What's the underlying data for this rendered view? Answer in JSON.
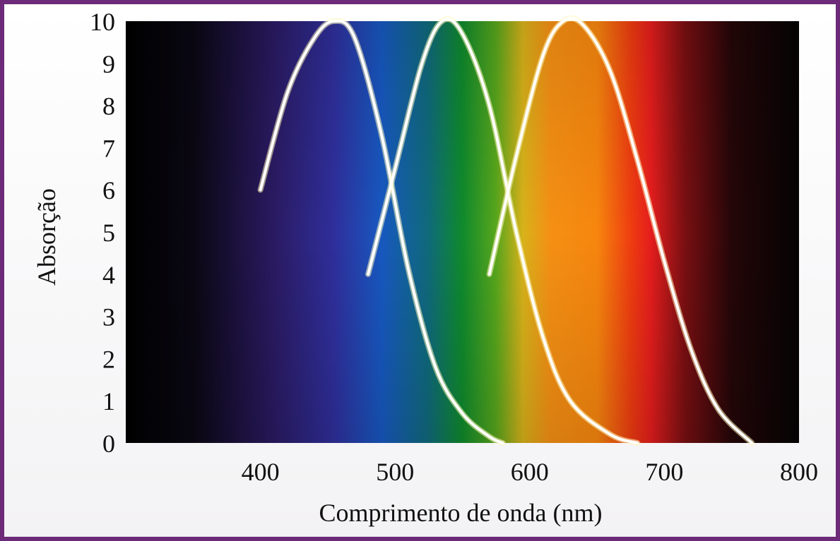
{
  "chart_data": {
    "type": "line",
    "title": "",
    "xlabel": "Comprimento de onda (nm)",
    "ylabel": "Absorção",
    "xlim": [
      300,
      800
    ],
    "ylim": [
      0,
      10
    ],
    "xticks": [
      "400",
      "500",
      "600",
      "700",
      "800"
    ],
    "yticks": [
      "0",
      "1",
      "2",
      "3",
      "4",
      "5",
      "6",
      "7",
      "8",
      "9",
      "10"
    ],
    "background": "visible light spectrum (violet → blue → green → yellow → orange → red → dark)",
    "grid": false,
    "legend": "none",
    "series": [
      {
        "color": "#ffffff",
        "peak_wavelength": 455,
        "x": [
          400,
          420,
          440,
          455,
          470,
          490,
          510,
          530,
          550,
          570,
          580
        ],
        "y": [
          6.0,
          8.3,
          9.6,
          10.0,
          9.6,
          7.3,
          4.1,
          1.8,
          0.7,
          0.15,
          0.0
        ]
      },
      {
        "color": "#ffffff",
        "peak_wavelength": 535,
        "x": [
          480,
          500,
          520,
          535,
          550,
          570,
          590,
          610,
          630,
          660,
          680
        ],
        "y": [
          4.0,
          6.5,
          9.0,
          10.0,
          9.7,
          8.0,
          5.0,
          2.5,
          1.0,
          0.2,
          0.0
        ]
      },
      {
        "color": "#ffffff",
        "peak_wavelength": 625,
        "x": [
          570,
          590,
          610,
          625,
          640,
          660,
          680,
          700,
          720,
          740,
          765
        ],
        "y": [
          4.0,
          6.8,
          9.2,
          10.0,
          9.9,
          8.8,
          6.7,
          4.3,
          2.2,
          0.8,
          0.0
        ]
      }
    ]
  }
}
